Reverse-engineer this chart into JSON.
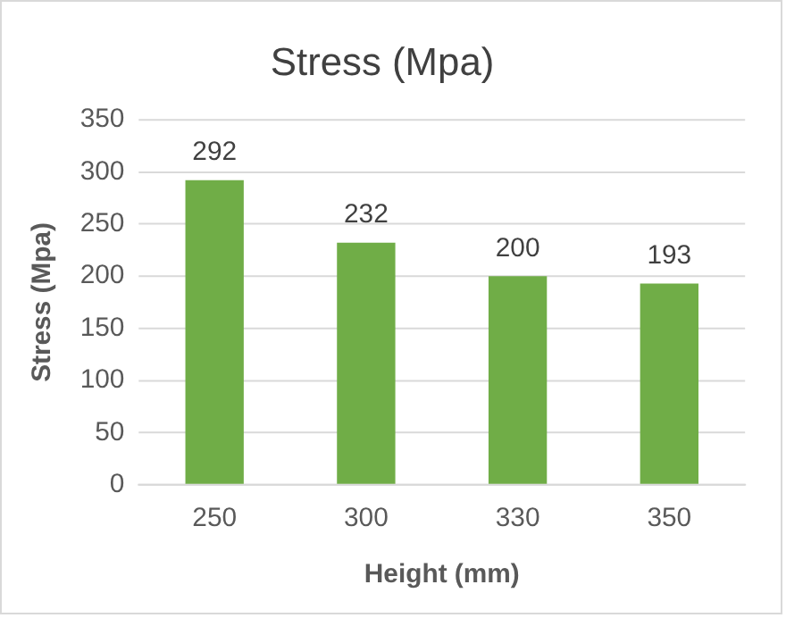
{
  "chart_data": {
    "type": "bar",
    "title": "Stress (Mpa)",
    "xlabel": "Height (mm)",
    "ylabel": "Stress (Mpa)",
    "categories": [
      "250",
      "300",
      "330",
      "350"
    ],
    "values": [
      292,
      232,
      200,
      193
    ],
    "color": "#70ad47",
    "ylim": [
      0,
      350
    ],
    "yticks": [
      0,
      50,
      100,
      150,
      200,
      250,
      300,
      350
    ],
    "grid": "y",
    "data_labels": true,
    "legend": false
  }
}
